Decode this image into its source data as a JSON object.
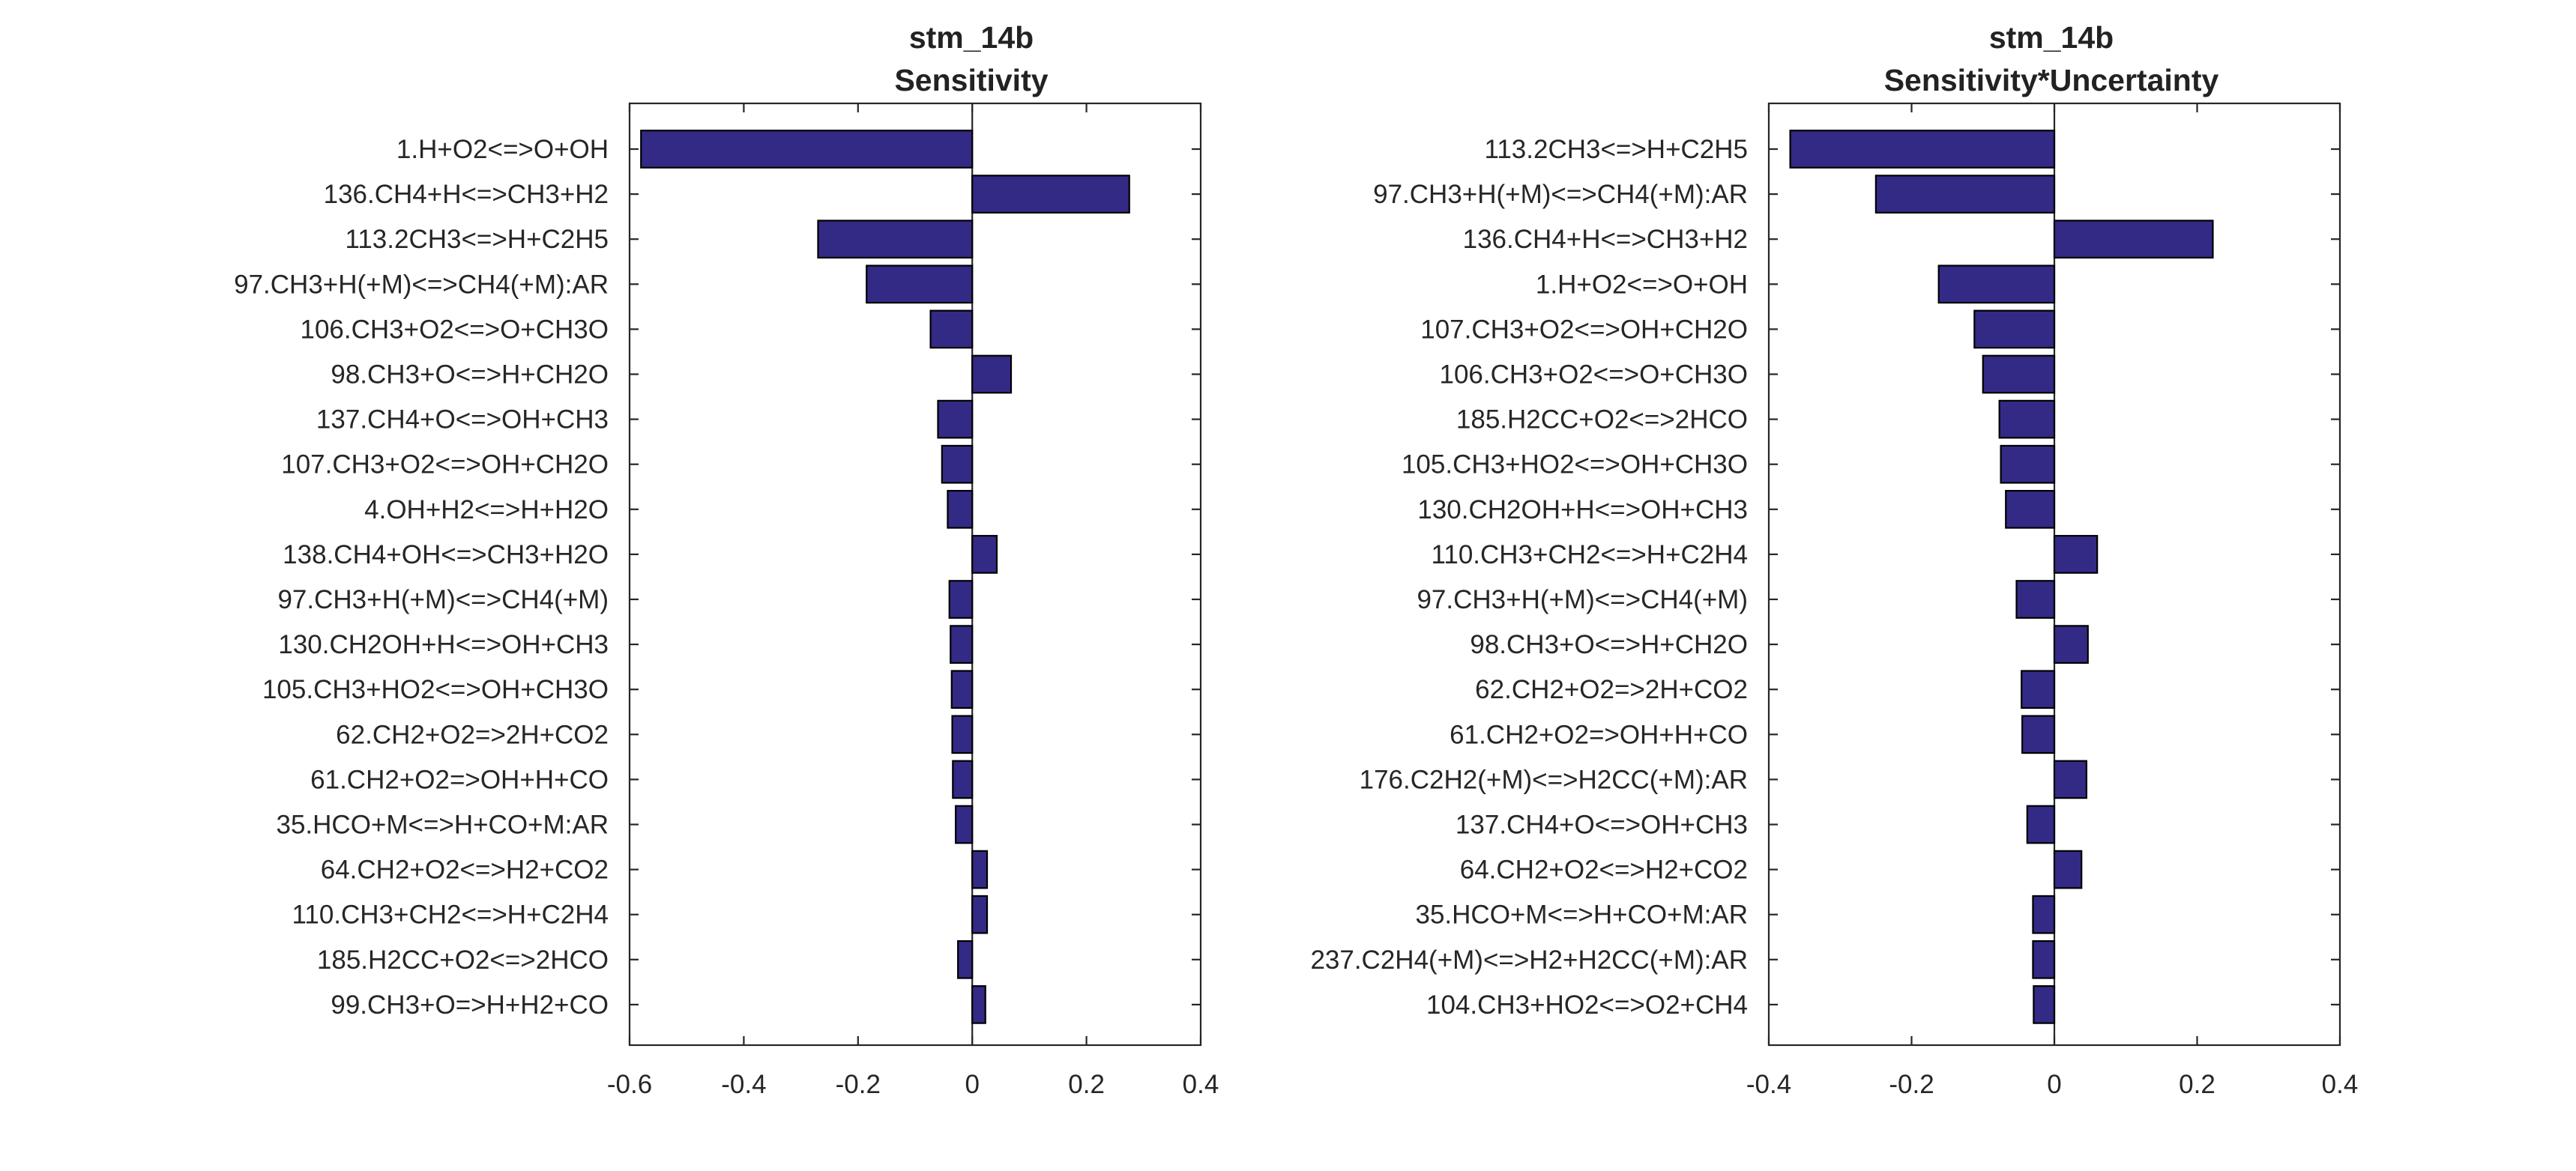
{
  "chart_data": [
    {
      "type": "bar",
      "orientation": "horizontal",
      "title": "stm_14b",
      "subtitle": "Sensitivity",
      "xlim": [
        -0.6,
        0.4
      ],
      "xticks": [
        -0.6,
        -0.4,
        -0.2,
        0,
        0.2,
        0.4
      ],
      "xtick_labels": [
        "-0.6",
        "-0.4",
        "-0.2",
        "0",
        "0.2",
        "0.4"
      ],
      "bar_color": "#332a86",
      "grid": false,
      "categories": [
        "1.H+O2<=>O+OH",
        "136.CH4+H<=>CH3+H2",
        "113.2CH3<=>H+C2H5",
        "97.CH3+H(+M)<=>CH4(+M):AR",
        "106.CH3+O2<=>O+CH3O",
        "98.CH3+O<=>H+CH2O",
        "137.CH4+O<=>OH+CH3",
        "107.CH3+O2<=>OH+CH2O",
        "4.OH+H2<=>H+H2O",
        "138.CH4+OH<=>CH3+H2O",
        "97.CH3+H(+M)<=>CH4(+M)",
        "130.CH2OH+H<=>OH+CH3",
        "105.CH3+HO2<=>OH+CH3O",
        "62.CH2+O2=>2H+CO2",
        "61.CH2+O2=>OH+H+CO",
        "35.HCO+M<=>H+CO+M:AR",
        "64.CH2+O2<=>H2+CO2",
        "110.CH3+CH2<=>H+C2H4",
        "185.H2CC+O2<=>2HCO",
        "99.CH3+O=>H+H2+CO"
      ],
      "values": [
        -0.58,
        0.275,
        -0.27,
        -0.185,
        -0.073,
        0.068,
        -0.06,
        -0.053,
        -0.043,
        0.043,
        -0.04,
        -0.038,
        -0.036,
        -0.035,
        -0.034,
        -0.029,
        0.026,
        0.026,
        -0.025,
        0.023
      ]
    },
    {
      "type": "bar",
      "orientation": "horizontal",
      "title": "stm_14b",
      "subtitle": "Sensitivity*Uncertainty",
      "xlim": [
        -0.4,
        0.4
      ],
      "xticks": [
        -0.4,
        -0.2,
        0,
        0.2,
        0.4
      ],
      "xtick_labels": [
        "-0.4",
        "-0.2",
        "0",
        "0.2",
        "0.4"
      ],
      "bar_color": "#332a86",
      "grid": false,
      "categories": [
        "113.2CH3<=>H+C2H5",
        "97.CH3+H(+M)<=>CH4(+M):AR",
        "136.CH4+H<=>CH3+H2",
        "1.H+O2<=>O+OH",
        "107.CH3+O2<=>OH+CH2O",
        "106.CH3+O2<=>O+CH3O",
        "185.H2CC+O2<=>2HCO",
        "105.CH3+HO2<=>OH+CH3O",
        "130.CH2OH+H<=>OH+CH3",
        "110.CH3+CH2<=>H+C2H4",
        "97.CH3+H(+M)<=>CH4(+M)",
        "98.CH3+O<=>H+CH2O",
        "62.CH2+O2=>2H+CO2",
        "61.CH2+O2=>OH+H+CO",
        "176.C2H2(+M)<=>H2CC(+M):AR",
        "137.CH4+O<=>OH+CH3",
        "64.CH2+O2<=>H2+CO2",
        "35.HCO+M<=>H+CO+M:AR",
        "237.C2H4(+M)<=>H2+H2CC(+M):AR",
        "104.CH3+HO2<=>O2+CH4"
      ],
      "values": [
        -0.37,
        -0.25,
        0.222,
        -0.162,
        -0.112,
        -0.1,
        -0.077,
        -0.075,
        -0.068,
        0.06,
        -0.053,
        0.047,
        -0.046,
        -0.045,
        0.045,
        -0.038,
        0.038,
        -0.03,
        -0.03,
        -0.029
      ]
    }
  ]
}
